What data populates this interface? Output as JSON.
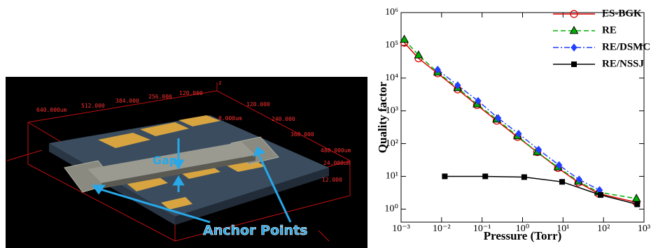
{
  "image": {
    "axis_labels": [
      "640.000um",
      "512.000",
      "384.000",
      "256.000",
      "120.000",
      "z",
      "120.000",
      "0.000um",
      "240.000",
      "360.000",
      "480.000um",
      "24.000um",
      "12.000"
    ],
    "gap_label": "Gap",
    "anchor_label": "Anchor Points"
  },
  "chart_data": {
    "type": "line",
    "xlabel": "Pressure (Torr)",
    "ylabel": "Quality factor",
    "xscale": "log",
    "yscale": "log",
    "xlim": [
      0.001,
      1000
    ],
    "ylim": [
      0.4,
      1000000
    ],
    "xticks": [
      {
        "value": 0.001,
        "label": "10⁻³"
      },
      {
        "value": 0.01,
        "label": "10⁻²"
      },
      {
        "value": 0.1,
        "label": "10⁻¹"
      },
      {
        "value": 1,
        "label": "10⁰"
      },
      {
        "value": 10,
        "label": "10¹"
      },
      {
        "value": 100,
        "label": "10²"
      },
      {
        "value": 1000,
        "label": "10³"
      }
    ],
    "yticks": [
      {
        "value": 1,
        "label": "10⁰"
      },
      {
        "value": 10,
        "label": "10¹"
      },
      {
        "value": 100,
        "label": "10²"
      },
      {
        "value": 1000,
        "label": "10³"
      },
      {
        "value": 10000,
        "label": "10⁴"
      },
      {
        "value": 100000,
        "label": "10⁵"
      },
      {
        "value": 1000000,
        "label": "10⁶"
      }
    ],
    "legend": "upper right",
    "series": [
      {
        "name": "ES-BGK",
        "color": "#dd0000",
        "dash": "solid",
        "marker": "circle",
        "x": [
          0.0012,
          0.0027,
          0.008,
          0.025,
          0.075,
          0.23,
          0.75,
          2.3,
          7.5,
          24,
          75,
          650
        ],
        "values": [
          120000,
          40000,
          14000,
          4500,
          1500,
          500,
          160,
          55,
          18,
          6.5,
          3.0,
          1.6
        ]
      },
      {
        "name": "RE",
        "color": "#00b000",
        "dash": "dashed",
        "marker": "triangle",
        "x": [
          0.0012,
          0.0027,
          0.008,
          0.025,
          0.075,
          0.23,
          0.75,
          2.3,
          7.5,
          24,
          75,
          650
        ],
        "values": [
          150000,
          50000,
          15000,
          5000,
          1600,
          550,
          170,
          55,
          19,
          7,
          3.3,
          2.1
        ]
      },
      {
        "name": "RE/DSMC",
        "color": "#2040ff",
        "dash": "dashdot",
        "marker": "diamond",
        "x": [
          0.008,
          0.025,
          0.08,
          0.25,
          0.8,
          2.5,
          8,
          25,
          80
        ],
        "values": [
          18000,
          6000,
          2000,
          600,
          200,
          65,
          22,
          8,
          3.8
        ]
      },
      {
        "name": "RE/NSSJ",
        "color": "#000000",
        "dash": "solid",
        "marker": "square",
        "x": [
          0.012,
          0.12,
          1.1,
          9.5,
          85,
          680
        ],
        "values": [
          10,
          10,
          9.5,
          6.8,
          2.7,
          1.4
        ]
      }
    ]
  }
}
